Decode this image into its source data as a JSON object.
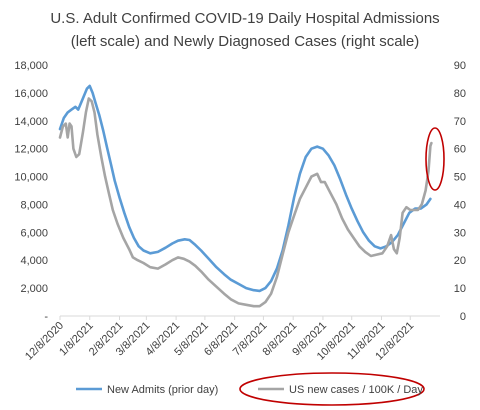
{
  "chart_data": {
    "type": "line",
    "title": "U.S. Adult Confirmed COVID-19 Daily Hospital Admissions (left scale) and Newly Diagnosed Cases (right scale)",
    "title_lines": [
      "U.S. Adult  Confirmed  COVID-19 Daily Hospital Admissions",
      "(left scale) and Newly Diagnosed Cases (right scale)"
    ],
    "xlabel": "",
    "ylabel_left": "",
    "ylabel_right": "",
    "x_start": "2020-12-08",
    "x_end": "2022-01-08",
    "x_tick_labels": [
      "12/8/2020",
      "1/8/2021",
      "2/8/2021",
      "3/8/2021",
      "4/8/2021",
      "5/8/2021",
      "6/8/2021",
      "7/8/2021",
      "8/8/2021",
      "9/8/2021",
      "10/8/2021",
      "11/8/2021",
      "12/8/2021"
    ],
    "ylim_left": [
      0,
      18000
    ],
    "yticks_left": [
      "-",
      "2,000",
      "4,000",
      "6,000",
      "8,000",
      "10,000",
      "12,000",
      "14,000",
      "16,000",
      "18,000"
    ],
    "ylim_right": [
      0,
      90
    ],
    "yticks_right": [
      "0",
      "10",
      "20",
      "30",
      "40",
      "50",
      "60",
      "70",
      "80",
      "90"
    ],
    "grid": false,
    "legend_position": "bottom",
    "series": [
      {
        "name": "New Admits (prior day)",
        "axis": "left",
        "color": "#5B9BD5",
        "points": [
          [
            "2020-12-08",
            13400
          ],
          [
            "2020-12-12",
            14200
          ],
          [
            "2020-12-16",
            14600
          ],
          [
            "2020-12-20",
            14800
          ],
          [
            "2020-12-24",
            15000
          ],
          [
            "2020-12-27",
            14800
          ],
          [
            "2020-12-30",
            15300
          ],
          [
            "2021-01-02",
            15800
          ],
          [
            "2021-01-05",
            16300
          ],
          [
            "2021-01-08",
            16500
          ],
          [
            "2021-01-11",
            16000
          ],
          [
            "2021-01-14",
            15300
          ],
          [
            "2021-01-18",
            14400
          ],
          [
            "2021-01-22",
            13300
          ],
          [
            "2021-01-26",
            12100
          ],
          [
            "2021-01-30",
            10900
          ],
          [
            "2021-02-03",
            9700
          ],
          [
            "2021-02-08",
            8500
          ],
          [
            "2021-02-13",
            7400
          ],
          [
            "2021-02-18",
            6400
          ],
          [
            "2021-02-23",
            5600
          ],
          [
            "2021-02-28",
            5000
          ],
          [
            "2021-03-05",
            4700
          ],
          [
            "2021-03-12",
            4500
          ],
          [
            "2021-03-20",
            4600
          ],
          [
            "2021-03-28",
            4900
          ],
          [
            "2021-04-04",
            5200
          ],
          [
            "2021-04-10",
            5400
          ],
          [
            "2021-04-17",
            5500
          ],
          [
            "2021-04-22",
            5450
          ],
          [
            "2021-04-28",
            5100
          ],
          [
            "2021-05-04",
            4700
          ],
          [
            "2021-05-12",
            4100
          ],
          [
            "2021-05-20",
            3500
          ],
          [
            "2021-05-28",
            3000
          ],
          [
            "2021-06-04",
            2600
          ],
          [
            "2021-06-12",
            2300
          ],
          [
            "2021-06-20",
            2000
          ],
          [
            "2021-06-28",
            1850
          ],
          [
            "2021-07-04",
            1800
          ],
          [
            "2021-07-10",
            2000
          ],
          [
            "2021-07-16",
            2500
          ],
          [
            "2021-07-22",
            3400
          ],
          [
            "2021-07-28",
            4700
          ],
          [
            "2021-08-03",
            6500
          ],
          [
            "2021-08-09",
            8500
          ],
          [
            "2021-08-15",
            10200
          ],
          [
            "2021-08-21",
            11400
          ],
          [
            "2021-08-27",
            12000
          ],
          [
            "2021-09-02",
            12150
          ],
          [
            "2021-09-08",
            12000
          ],
          [
            "2021-09-14",
            11500
          ],
          [
            "2021-09-20",
            10800
          ],
          [
            "2021-09-26",
            9800
          ],
          [
            "2021-10-02",
            8700
          ],
          [
            "2021-10-08",
            7700
          ],
          [
            "2021-10-14",
            6800
          ],
          [
            "2021-10-20",
            6000
          ],
          [
            "2021-10-26",
            5400
          ],
          [
            "2021-11-01",
            5000
          ],
          [
            "2021-11-07",
            4850
          ],
          [
            "2021-11-13",
            5000
          ],
          [
            "2021-11-19",
            5300
          ],
          [
            "2021-11-25",
            5800
          ],
          [
            "2021-12-01",
            6600
          ],
          [
            "2021-12-07",
            7400
          ],
          [
            "2021-12-13",
            7700
          ],
          [
            "2021-12-19",
            7700
          ],
          [
            "2021-12-25",
            8000
          ],
          [
            "2021-12-29",
            8400
          ]
        ]
      },
      {
        "name": "US new cases / 100K / Day",
        "axis": "right",
        "color": "#A5A5A5",
        "points": [
          [
            "2020-12-08",
            64
          ],
          [
            "2020-12-11",
            68
          ],
          [
            "2020-12-14",
            69
          ],
          [
            "2020-12-16",
            64
          ],
          [
            "2020-12-18",
            69
          ],
          [
            "2020-12-20",
            68
          ],
          [
            "2020-12-22",
            60
          ],
          [
            "2020-12-25",
            57
          ],
          [
            "2020-12-28",
            58
          ],
          [
            "2020-12-30",
            62
          ],
          [
            "2021-01-01",
            66
          ],
          [
            "2021-01-04",
            73
          ],
          [
            "2021-01-07",
            78
          ],
          [
            "2021-01-10",
            77
          ],
          [
            "2021-01-13",
            73
          ],
          [
            "2021-01-16",
            65
          ],
          [
            "2021-01-20",
            57
          ],
          [
            "2021-01-24",
            50
          ],
          [
            "2021-01-28",
            44
          ],
          [
            "2021-02-01",
            38
          ],
          [
            "2021-02-06",
            33
          ],
          [
            "2021-02-12",
            28
          ],
          [
            "2021-02-18",
            24
          ],
          [
            "2021-02-22",
            21
          ],
          [
            "2021-02-27",
            20
          ],
          [
            "2021-03-05",
            19
          ],
          [
            "2021-03-12",
            17.5
          ],
          [
            "2021-03-20",
            17
          ],
          [
            "2021-03-28",
            18.5
          ],
          [
            "2021-04-04",
            20
          ],
          [
            "2021-04-10",
            21
          ],
          [
            "2021-04-16",
            20.5
          ],
          [
            "2021-04-22",
            19.5
          ],
          [
            "2021-04-28",
            18
          ],
          [
            "2021-05-04",
            16
          ],
          [
            "2021-05-12",
            13
          ],
          [
            "2021-05-20",
            10.5
          ],
          [
            "2021-05-28",
            8
          ],
          [
            "2021-06-04",
            6
          ],
          [
            "2021-06-12",
            4.5
          ],
          [
            "2021-06-20",
            4
          ],
          [
            "2021-06-28",
            3.5
          ],
          [
            "2021-07-04",
            3.5
          ],
          [
            "2021-07-10",
            5
          ],
          [
            "2021-07-16",
            8
          ],
          [
            "2021-07-22",
            14
          ],
          [
            "2021-07-28",
            22
          ],
          [
            "2021-08-03",
            30
          ],
          [
            "2021-08-09",
            36
          ],
          [
            "2021-08-15",
            42
          ],
          [
            "2021-08-21",
            46
          ],
          [
            "2021-08-27",
            50
          ],
          [
            "2021-09-02",
            51
          ],
          [
            "2021-09-06",
            48
          ],
          [
            "2021-09-10",
            48
          ],
          [
            "2021-09-16",
            44
          ],
          [
            "2021-09-22",
            40
          ],
          [
            "2021-09-28",
            35
          ],
          [
            "2021-10-04",
            31
          ],
          [
            "2021-10-10",
            28
          ],
          [
            "2021-10-16",
            25
          ],
          [
            "2021-10-22",
            23
          ],
          [
            "2021-10-28",
            21.5
          ],
          [
            "2021-11-03",
            22
          ],
          [
            "2021-11-09",
            22.5
          ],
          [
            "2021-11-14",
            25
          ],
          [
            "2021-11-18",
            29
          ],
          [
            "2021-11-21",
            24
          ],
          [
            "2021-11-24",
            22.5
          ],
          [
            "2021-11-27",
            28
          ],
          [
            "2021-11-30",
            37
          ],
          [
            "2021-12-04",
            39
          ],
          [
            "2021-12-08",
            38
          ],
          [
            "2021-12-12",
            38
          ],
          [
            "2021-12-16",
            38
          ],
          [
            "2021-12-20",
            40
          ],
          [
            "2021-12-24",
            45
          ],
          [
            "2021-12-27",
            52
          ],
          [
            "2021-12-29",
            61
          ],
          [
            "2021-12-30",
            62
          ]
        ]
      }
    ],
    "annotations": [
      {
        "kind": "ellipse",
        "color": "#C00000",
        "around": "latest values of both series"
      },
      {
        "kind": "ellipse",
        "color": "#C00000",
        "around": "legend entry US new cases / 100K / Day"
      }
    ]
  }
}
